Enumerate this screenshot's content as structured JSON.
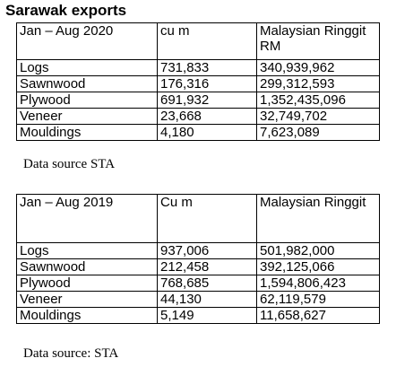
{
  "title": "Sarawak exports",
  "table_2020": {
    "headers": [
      "Jan – Aug 2020",
      "cu m",
      "Malaysian Ringgit RM"
    ],
    "rows": [
      [
        "Logs",
        "731,833",
        "340,939,962"
      ],
      [
        "Sawnwood",
        "176,316",
        "299,312,593"
      ],
      [
        "Plywood",
        "691,932",
        "1,352,435,096"
      ],
      [
        "Veneer",
        "23,668",
        "32,749,702"
      ],
      [
        "Mouldings",
        "4,180",
        "7,623,089"
      ]
    ],
    "source": "Data source STA"
  },
  "table_2019": {
    "headers": [
      "Jan – Aug 2019",
      "Cu m",
      "Malaysian Ringgit"
    ],
    "rows": [
      [
        "Logs",
        "937,006",
        "501,982,000"
      ],
      [
        "Sawnwood",
        "212,458",
        "392,125,066"
      ],
      [
        "Plywood",
        "768,685",
        "1,594,806,423"
      ],
      [
        "Veneer",
        "44,130",
        "62,119,579"
      ],
      [
        "Mouldings",
        "5,149",
        "11,658,627"
      ]
    ],
    "source": "Data source: STA"
  }
}
